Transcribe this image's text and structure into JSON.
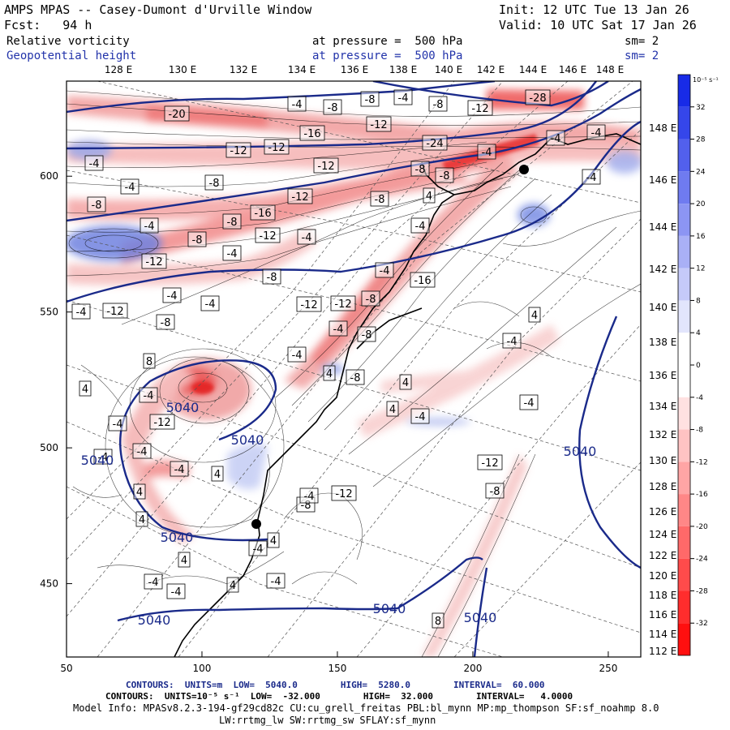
{
  "header": {
    "title": "AMPS MPAS -- Casey-Dumont d'Urville Window",
    "init": "Init: 12 UTC Tue 13 Jan 26",
    "forecast": "Fcst:   94 h",
    "valid": "Valid: 10 UTC Sat 17 Jan 26",
    "field1_name": "Relative vorticity",
    "field1_level": "at pressure =  500 hPa",
    "field1_sm": "sm= 2",
    "field2_name": "Geopotential height",
    "field2_level": "at pressure =  500 hPa",
    "field2_sm": "sm= 2"
  },
  "axes": {
    "x_ticks": [
      "50",
      "100",
      "150",
      "200",
      "250"
    ],
    "y_ticks": [
      "450",
      "500",
      "550",
      "600"
    ],
    "top_lon_labels": [
      "128 E",
      "130 E",
      "132 E",
      "134 E",
      "136 E",
      "138 E",
      "140 E",
      "142 E",
      "144 E",
      "146 E",
      "148 E"
    ],
    "right_lon_labels": [
      "148 E",
      "146 E",
      "144 E",
      "142 E",
      "140 E",
      "138 E",
      "136 E",
      "134 E",
      "132 E",
      "130 E",
      "128 E",
      "126 E",
      "124 E",
      "122 E",
      "120 E",
      "118 E",
      "116 E",
      "114 E",
      "112 E"
    ]
  },
  "colorbar": {
    "unit_label": "10⁻⁵ s⁻¹",
    "labels": [
      "32",
      "28",
      "24",
      "20",
      "16",
      "12",
      "8",
      "4",
      "0",
      "-4",
      "-8",
      "-12",
      "-16",
      "-20",
      "-24",
      "-28",
      "-32"
    ],
    "colors": {
      "high": "#0a1ee6",
      "low": "#ff0000",
      "neutral": "#ffffff",
      "height_contour": "#1a2a8a"
    }
  },
  "map_labels": {
    "height_labels": [
      "5040",
      "5040",
      "5040",
      "5040",
      "5040",
      "5040",
      "5040",
      "5040"
    ],
    "vorticity_labels": [
      "-20",
      "-4",
      "-8",
      "-8",
      "-4",
      "-8",
      "-12",
      "-28",
      "-16",
      "-12",
      "-24",
      "-12",
      "-12",
      "-4",
      "-12",
      "-8",
      "-12",
      "-16",
      "-8",
      "-8",
      "-12",
      "-4",
      "-4",
      "-12",
      "-8",
      "-4",
      "-4",
      "-8",
      "4",
      "-8",
      "-4",
      "-4",
      "-4",
      "-4",
      "-8",
      "-4",
      "-4",
      "-8",
      "-12",
      "-4",
      "-8",
      "-4",
      "-16",
      "-12",
      "-12",
      "-8",
      "-4",
      "-8",
      "-4",
      "4",
      "-8",
      "4",
      "-4",
      "8",
      "4",
      "-4",
      "-12",
      "-4",
      "-4",
      "-4",
      "4",
      "-4",
      "4",
      "4",
      "4",
      "-4",
      "-4",
      "4",
      "-4",
      "-4",
      "4",
      "-8",
      "-4",
      "-12",
      "-12",
      "-8",
      "8",
      "4",
      "-4",
      "-4",
      "-4",
      "4"
    ]
  },
  "footer": {
    "contour1": "CONTOURS:  UNITS=m  LOW=  5040.0        HIGH=  5280.0        INTERVAL=  60.000",
    "contour2": "CONTOURS:  UNITS=10⁻⁵ s⁻¹  LOW=  -32.000        HIGH=  32.000        INTERVAL=   4.0000",
    "model_info": "Model Info: MPASv8.2.3-194-gf29cd82c CU:cu_grell_freitas PBL:bl_mynn MP:mp_thompson SF:sf_noahmp 8.0",
    "model_info2": "LW:rrtmg_lw SW:rrtmg_sw SFLAY:sf_mynn"
  }
}
